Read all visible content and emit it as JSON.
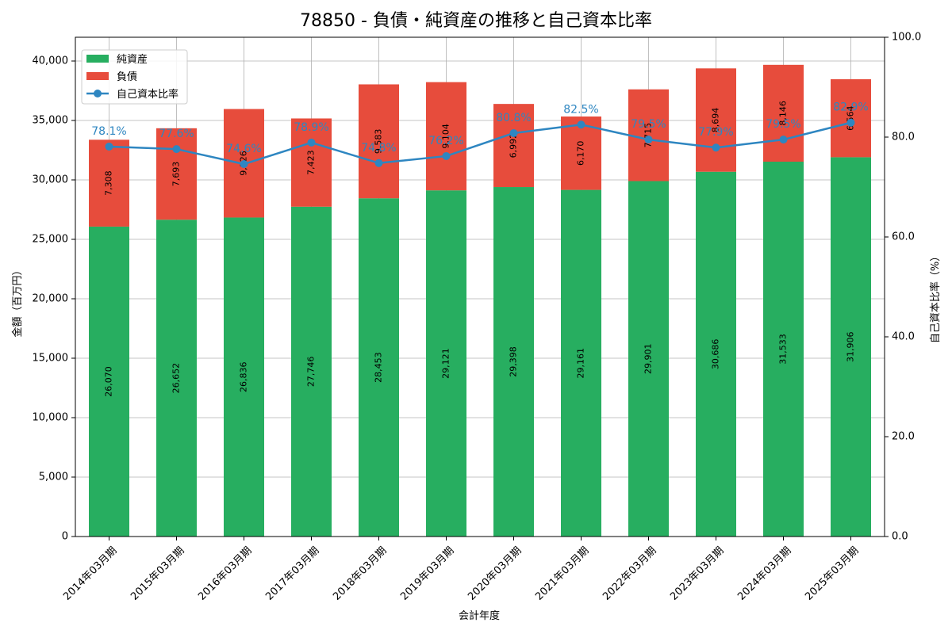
{
  "chart_data": {
    "type": "bar",
    "title": "78850 - 負債・純資産の推移と自己資本比率",
    "xlabel": "会計年度",
    "ylabel": "金額（百万円）",
    "y2label": "自己資本比率（%）",
    "ylim": [
      0,
      42000
    ],
    "y2lim": [
      0,
      100
    ],
    "y_ticks": [
      "0",
      "5,000",
      "10,000",
      "15,000",
      "20,000",
      "25,000",
      "30,000",
      "35,000",
      "40,000"
    ],
    "y_tick_values": [
      0,
      5000,
      10000,
      15000,
      20000,
      25000,
      30000,
      35000,
      40000
    ],
    "y2_ticks": [
      "0.0",
      "20.0",
      "40.0",
      "60.0",
      "80.0",
      "100.0"
    ],
    "y2_tick_values": [
      0,
      20,
      40,
      60,
      80,
      100
    ],
    "grid": true,
    "legend_position": "top-left",
    "categories": [
      "2014年03月期",
      "2015年03月期",
      "2016年03月期",
      "2017年03月期",
      "2018年03月期",
      "2019年03月期",
      "2020年03月期",
      "2021年03月期",
      "2022年03月期",
      "2023年03月期",
      "2024年03月期",
      "2025年03月期"
    ],
    "series": [
      {
        "name": "純資産",
        "kind": "bar",
        "color": "#27ae60",
        "values": [
          26070,
          26652,
          26836,
          27746,
          28453,
          29121,
          29398,
          29161,
          29901,
          30686,
          31533,
          31906
        ],
        "labels": [
          "26,070",
          "26,652",
          "26,836",
          "27,746",
          "28,453",
          "29,121",
          "29,398",
          "29,161",
          "29,901",
          "30,686",
          "31,533",
          "31,906"
        ]
      },
      {
        "name": "負債",
        "kind": "bar",
        "color": "#e74c3c",
        "values": [
          7308,
          7693,
          9126,
          7423,
          9583,
          9104,
          6992,
          6170,
          7715,
          8694,
          8146,
          6564
        ],
        "labels": [
          "7,308",
          "7,693",
          "9,126",
          "7,423",
          "9,583",
          "9,104",
          "6,992",
          "6,170",
          "7,715",
          "8,694",
          "8,146",
          "6,564"
        ]
      },
      {
        "name": "自己資本比率",
        "kind": "line",
        "color": "#2e86c1",
        "values": [
          78.1,
          77.6,
          74.6,
          78.9,
          74.8,
          76.2,
          80.8,
          82.5,
          79.5,
          77.9,
          79.5,
          82.9
        ],
        "labels": [
          "78.1%",
          "77.6%",
          "74.6%",
          "78.9%",
          "74.8%",
          "76.2%",
          "80.8%",
          "82.5%",
          "79.5%",
          "77.9%",
          "79.5%",
          "82.9%"
        ]
      }
    ]
  }
}
